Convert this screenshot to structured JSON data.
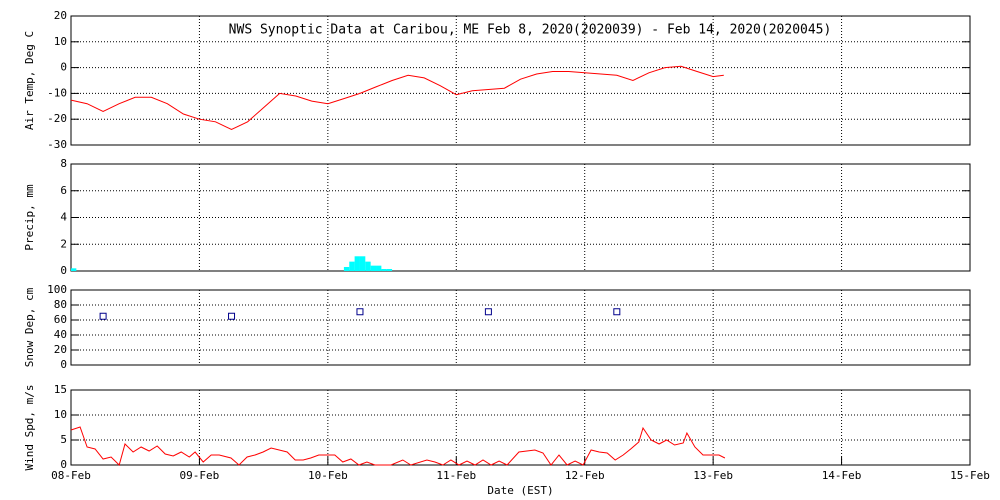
{
  "chart_data": [
    {
      "type": "line",
      "title": "NWS Synoptic Data at Caribou, ME   Feb  8, 2020(2020039) - Feb 14, 2020(2020045)",
      "ylabel": "Air Temp, Deg C",
      "color": "#ff0000",
      "x": [
        0,
        3,
        6,
        9,
        12,
        15,
        18,
        21,
        24,
        27,
        30,
        33,
        36,
        39,
        42,
        45,
        48,
        51,
        54,
        57,
        60,
        63,
        66,
        69,
        72,
        75,
        78,
        81,
        84,
        87,
        90,
        93,
        96,
        99,
        102,
        105,
        108,
        111,
        114,
        117,
        120,
        122
      ],
      "values": [
        -12.6,
        -14,
        -17,
        -14,
        -11.5,
        -11.5,
        -14,
        -18,
        -20,
        -21,
        -24,
        -21,
        -15.5,
        -10,
        -11,
        -13,
        -14,
        -12,
        -10,
        -7.5,
        -5,
        -3,
        -4,
        -7,
        -10.5,
        -9,
        -8.5,
        -8,
        -4.5,
        -2.5,
        -1.5,
        -1.5,
        -2,
        -2.5,
        -3,
        -5,
        -2,
        0,
        0.5,
        -1.5,
        -3.5,
        -3
      ],
      "xlim": [
        0,
        168
      ],
      "ylim": [
        -30,
        20
      ],
      "yticks": [
        -30,
        -20,
        -10,
        0,
        10,
        20
      ],
      "grid": true
    },
    {
      "type": "bar",
      "ylabel": "Precip, mm",
      "color": "#00ffff",
      "x": [
        0,
        51,
        52,
        53,
        54,
        55,
        56,
        57,
        58,
        59
      ],
      "values": [
        0.2,
        0.3,
        0.7,
        1.1,
        1.1,
        0.7,
        0.4,
        0.4,
        0.15,
        0.15
      ],
      "xlim": [
        0,
        168
      ],
      "ylim": [
        0,
        8
      ],
      "yticks": [
        0,
        2,
        4,
        6,
        8
      ],
      "grid": true
    },
    {
      "type": "scatter",
      "ylabel": "Snow Dep, cm",
      "color": "#00008b",
      "x": [
        6,
        30,
        54,
        78,
        102
      ],
      "values": [
        65,
        65,
        71,
        71,
        71
      ],
      "xlim": [
        0,
        168
      ],
      "ylim": [
        0,
        100
      ],
      "yticks": [
        0,
        20,
        40,
        60,
        80,
        100
      ],
      "grid": true
    },
    {
      "type": "line",
      "ylabel": "Wind Spd, m/s",
      "xlabel": "Date (EST)",
      "color": "#ff0000",
      "x": [
        0,
        1.7,
        3.0,
        4.5,
        6.0,
        7.5,
        9.0,
        10.1,
        11.6,
        13.1,
        14.6,
        16.1,
        17.6,
        19.1,
        20.6,
        22.1,
        23.2,
        24.7,
        26.2,
        27.7,
        29.9,
        31.4,
        32.9,
        34.4,
        35.9,
        37.4,
        38.9,
        40.4,
        41.9,
        43.4,
        44.8,
        46.3,
        47.8,
        49.3,
        50.8,
        52.3,
        53.8,
        55.3,
        56.8,
        59.8,
        62.0,
        63.5,
        66.5,
        68.0,
        69.5,
        71.0,
        72.5,
        74.0,
        75.5,
        77.0,
        78.5,
        80.0,
        81.5,
        83.7,
        85.2,
        86.7,
        88.2,
        89.7,
        91.2,
        92.7,
        94.2,
        95.7,
        97.2,
        98.7,
        100.2,
        101.7,
        103.2,
        104.6,
        106.1,
        106.9,
        108.4,
        109.9,
        111.3,
        112.8,
        114.4,
        115.1,
        116.6,
        118.1,
        119.6,
        121.1,
        122.2
      ],
      "values": [
        7,
        7.6,
        3.6,
        3.2,
        1.2,
        1.6,
        0,
        4.2,
        2.6,
        3.6,
        2.8,
        3.8,
        2.2,
        1.8,
        2.6,
        1.6,
        2.6,
        0.6,
        2,
        2,
        1.4,
        0,
        1.6,
        2,
        2.6,
        3.4,
        3,
        2.6,
        1,
        1,
        1.4,
        2,
        2,
        2,
        0.6,
        1.2,
        0,
        0.6,
        0,
        0,
        1,
        0,
        1,
        0.6,
        0,
        1,
        0,
        0.8,
        0,
        1,
        0,
        0.8,
        0,
        2.6,
        2.8,
        3,
        2.4,
        0,
        2,
        0,
        0.8,
        0,
        3,
        2.6,
        2.4,
        1,
        2,
        3.2,
        4.6,
        7.4,
        5,
        4.2,
        5,
        4,
        4.4,
        6.4,
        3.6,
        2,
        2,
        2,
        1.4
      ],
      "xlim": [
        0,
        168
      ],
      "xticks": [
        {
          "value": 0,
          "label": "08-Feb"
        },
        {
          "value": 24,
          "label": "09-Feb"
        },
        {
          "value": 48,
          "label": "10-Feb"
        },
        {
          "value": 72,
          "label": "11-Feb"
        },
        {
          "value": 96,
          "label": "12-Feb"
        },
        {
          "value": 120,
          "label": "13-Feb"
        },
        {
          "value": 144,
          "label": "14-Feb"
        },
        {
          "value": 168,
          "label": "15-Feb"
        }
      ],
      "ylim": [
        0,
        15
      ],
      "yticks": [
        0,
        5,
        10,
        15
      ],
      "grid": true
    }
  ]
}
